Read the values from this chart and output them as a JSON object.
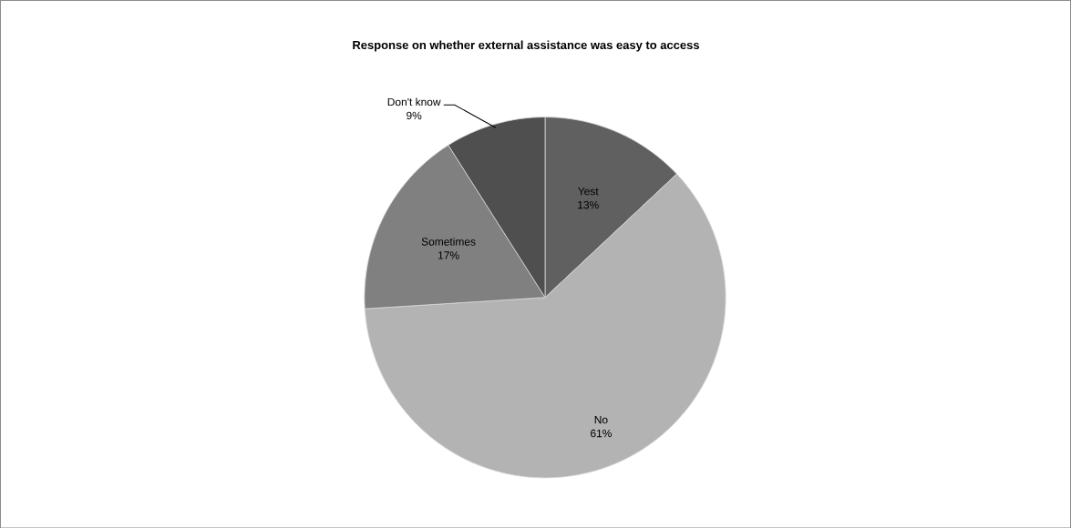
{
  "chart_data": {
    "type": "pie",
    "title": "Response on whether external assistance was easy to access",
    "categories": [
      "Yest",
      "No",
      "Sometimes",
      "Don't know"
    ],
    "values": [
      13,
      61,
      17,
      9
    ],
    "value_labels": [
      "13%",
      "61%",
      "17%",
      "9%"
    ],
    "colors": [
      "#606060",
      "#b3b3b3",
      "#808080",
      "#4f4f4f"
    ]
  }
}
